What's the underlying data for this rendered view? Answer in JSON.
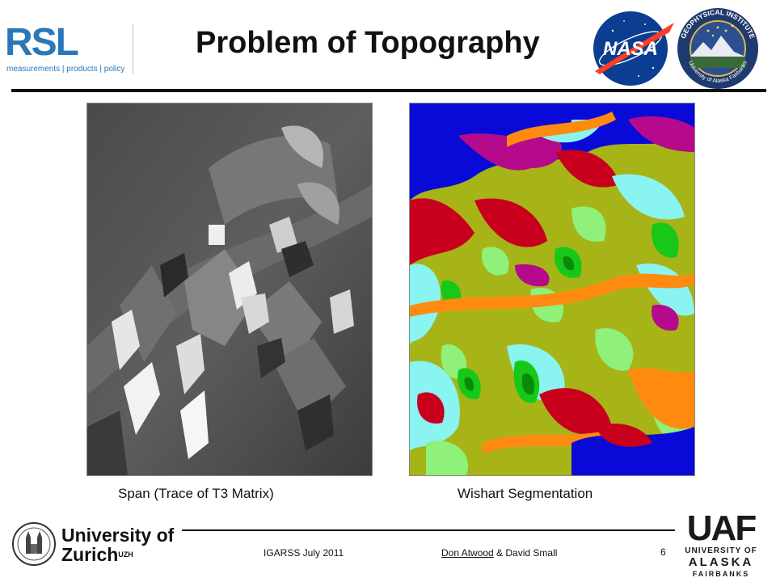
{
  "header": {
    "title": "Problem of Topography",
    "rsl_logo_text": "RSL",
    "rsl_tagline": "measurements | products | policy",
    "nasa_logo_text": "NASA",
    "gi_logo_text_top": "GEOPHYSICAL INSTITUTE",
    "gi_logo_text_bottom": "University of Alaska Fairbanks"
  },
  "figures": {
    "left_caption": "Span (Trace of T3 Matrix)",
    "right_caption": "Wishart Segmentation",
    "segmentation_colors": [
      "#0a0ad8",
      "#c8001e",
      "#b50a8c",
      "#ff8a10",
      "#a6b418",
      "#8ff07a",
      "#18c818",
      "#0a8a0a",
      "#8af4f0"
    ]
  },
  "footer": {
    "uzh_line1": "University of",
    "uzh_line2": "Zurich",
    "uzh_sup": "UZH",
    "conference": "IGARSS  July 2011",
    "author1": "Don Atwood",
    "author_rest": " & David Small",
    "page_number": "6",
    "uaf_main": "UAF",
    "uaf_line1": "UNIVERSITY OF",
    "uaf_line2": "ALASKA",
    "uaf_line3": "FAIRBANKS"
  }
}
